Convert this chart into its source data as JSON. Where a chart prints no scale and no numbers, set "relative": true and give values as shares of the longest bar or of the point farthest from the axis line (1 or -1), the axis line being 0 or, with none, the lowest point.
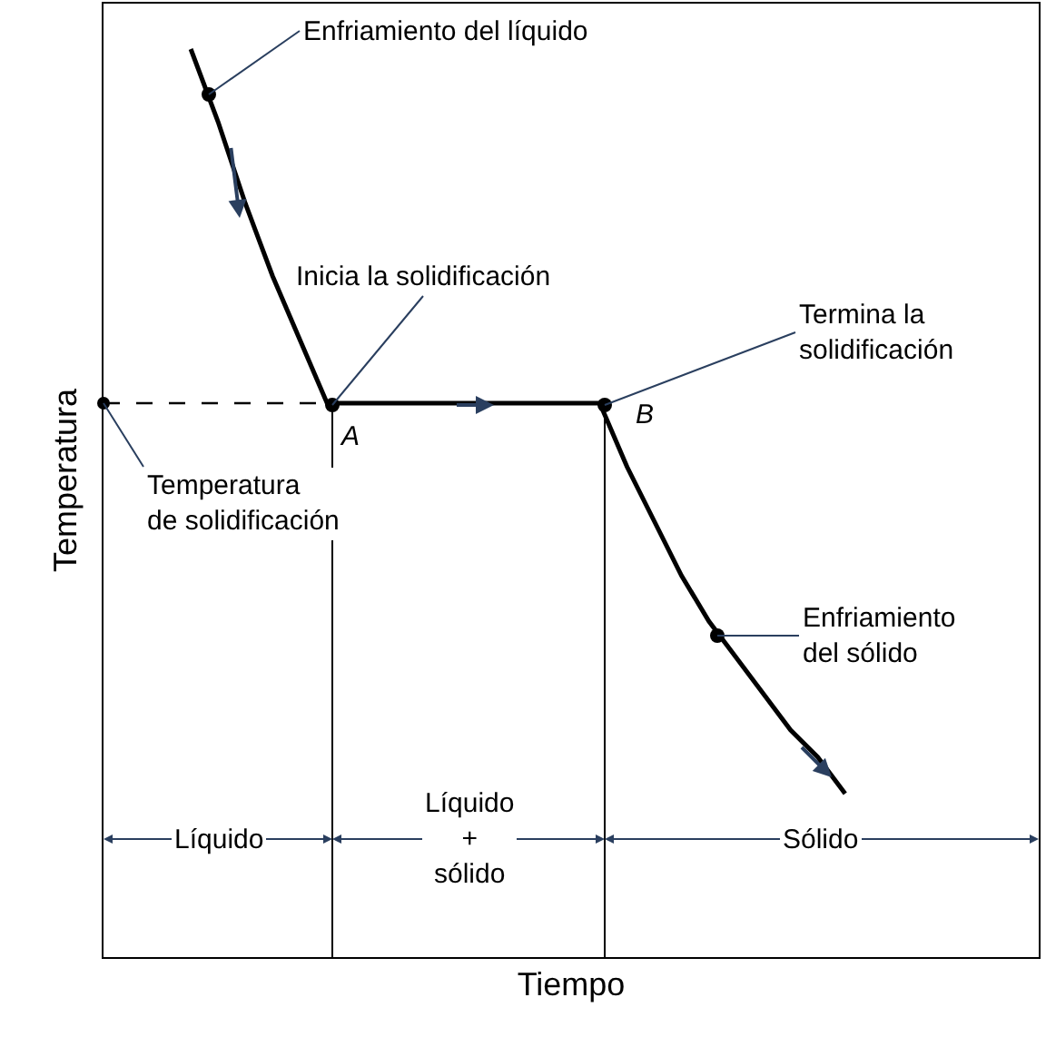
{
  "chart_data": {
    "type": "line",
    "relative": true,
    "xlabel": "Tiempo",
    "ylabel": "Temperatura",
    "categories": [
      null,
      null,
      null,
      null,
      null,
      null,
      null,
      null,
      null,
      null,
      null,
      null,
      null,
      null,
      null,
      null,
      null,
      null,
      null,
      null,
      null,
      null,
      null,
      null,
      null
    ],
    "series": [
      {
        "color": "#000000",
        "values": [
          1.0,
          0.92,
          0.83,
          0.75,
          0.68,
          0.61,
          0.61,
          0.61,
          0.61,
          0.61,
          0.61,
          0.61,
          0.61,
          0.61,
          0.61,
          0.61,
          0.54,
          0.48,
          0.42,
          0.37,
          0.33,
          0.29,
          0.25,
          0.22,
          0.18
        ]
      }
    ],
    "ref_lines": [
      {
        "axis": "y",
        "value": 0.61,
        "label": "Temperatura\nde solidificación",
        "line_style": "dashed",
        "color": "#000000"
      }
    ],
    "annotations": [
      "Enfriamiento del líquido",
      "Inicia la solidificación",
      "Termina la\nsolidificación",
      "Enfriamiento\ndel sólido",
      "A",
      "B",
      "Líquido",
      "Líquido\n+\nsólido",
      "Sólido"
    ],
    "tick_labels": false
  }
}
